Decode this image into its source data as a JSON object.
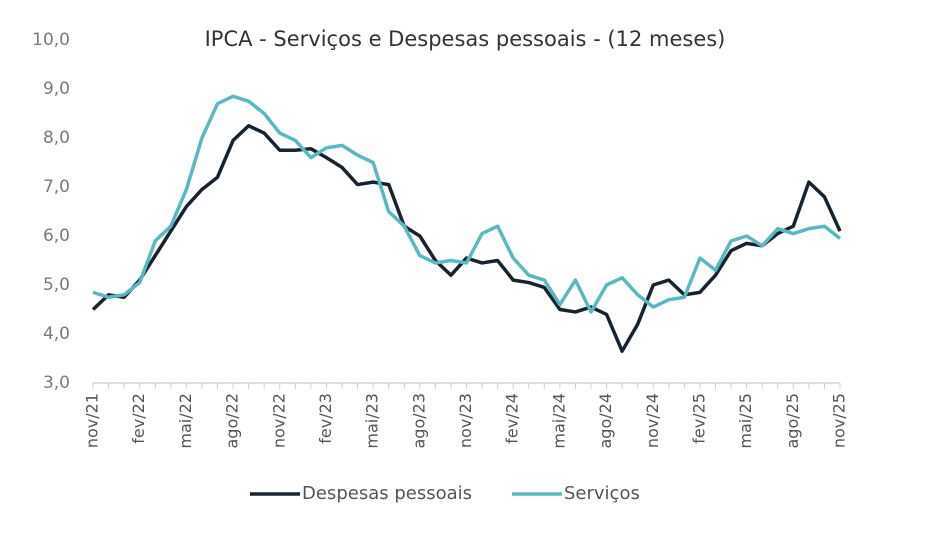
{
  "chart_data": {
    "type": "line",
    "title": "IPCA - Serviços e Despesas pessoais - (12 meses)",
    "categories": [
      "nov/21",
      null,
      null,
      "fev/22",
      null,
      null,
      "mai/22",
      null,
      null,
      "ago/22",
      null,
      null,
      "nov/22",
      null,
      null,
      "fev/23",
      null,
      null,
      "mai/23",
      null,
      null,
      "ago/23",
      null,
      null,
      "nov/23",
      null,
      null,
      "fev/24",
      null,
      null,
      "mai/24",
      null,
      null,
      "ago/24",
      null,
      null,
      "nov/24",
      null,
      null,
      "fev/25",
      null,
      null,
      "mai/25",
      null,
      null,
      "ago/25",
      null,
      null,
      "nov/25"
    ],
    "series": [
      {
        "name": "Despesas pessoais",
        "color": "#17242f",
        "values": [
          4.5,
          4.8,
          4.75,
          5.1,
          5.6,
          6.1,
          6.6,
          6.95,
          7.2,
          7.95,
          8.25,
          8.1,
          7.75,
          7.75,
          7.78,
          7.6,
          7.4,
          7.05,
          7.1,
          7.05,
          6.2,
          6.0,
          5.5,
          5.2,
          5.55,
          5.45,
          5.5,
          5.1,
          5.05,
          4.95,
          4.5,
          4.45,
          4.55,
          4.4,
          3.65,
          4.2,
          5.0,
          5.1,
          4.8,
          4.85,
          5.2,
          5.7,
          5.85,
          5.8,
          6.05,
          6.2,
          7.1,
          6.8,
          6.1
        ]
      },
      {
        "name": "Serviços",
        "color": "#5bb8c0",
        "values": [
          4.85,
          4.75,
          4.8,
          5.05,
          5.9,
          6.2,
          6.95,
          8.0,
          8.7,
          8.85,
          8.75,
          8.5,
          8.1,
          7.95,
          7.6,
          7.8,
          7.85,
          7.65,
          7.5,
          6.5,
          6.2,
          5.6,
          5.45,
          5.5,
          5.45,
          6.05,
          6.2,
          5.55,
          5.2,
          5.1,
          4.6,
          5.1,
          4.45,
          5.0,
          5.15,
          4.8,
          4.55,
          4.7,
          4.75,
          5.55,
          5.3,
          5.9,
          6.0,
          5.8,
          6.15,
          6.05,
          6.15,
          6.2,
          5.95
        ]
      }
    ],
    "ylim": [
      3,
      10
    ],
    "yticks": [
      {
        "value": 3,
        "label": "3,0"
      },
      {
        "value": 4,
        "label": "4,0"
      },
      {
        "value": 5,
        "label": "5,0"
      },
      {
        "value": 6,
        "label": "6,0"
      },
      {
        "value": 7,
        "label": "7,0"
      },
      {
        "value": 8,
        "label": "8,0"
      },
      {
        "value": 9,
        "label": "9,0"
      },
      {
        "value": 10,
        "label": "10,0"
      }
    ],
    "legend": "bottom"
  }
}
